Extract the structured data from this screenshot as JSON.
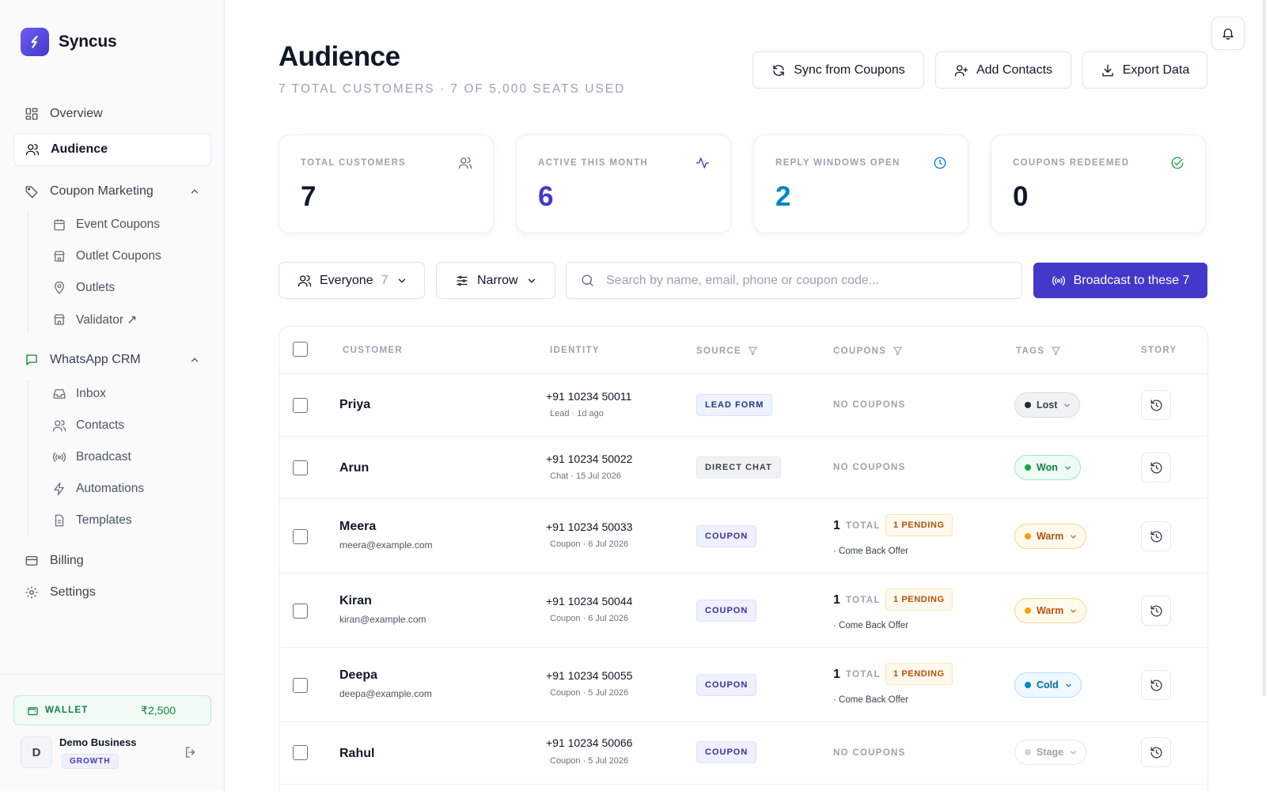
{
  "app": {
    "name": "Syncus"
  },
  "sidebar": {
    "nav": [
      {
        "label": "Overview"
      },
      {
        "label": "Audience"
      },
      {
        "label": "Coupon Marketing"
      },
      {
        "label": "Event Coupons"
      },
      {
        "label": "Outlet Coupons"
      },
      {
        "label": "Outlets"
      },
      {
        "label": "Validator ↗"
      },
      {
        "label": "WhatsApp CRM"
      },
      {
        "label": "Inbox"
      },
      {
        "label": "Contacts"
      },
      {
        "label": "Broadcast"
      },
      {
        "label": "Automations"
      },
      {
        "label": "Templates"
      },
      {
        "label": "Billing"
      },
      {
        "label": "Settings"
      }
    ],
    "active": "Audience",
    "wallet": {
      "label": "WALLET",
      "amount": "₹2,500"
    },
    "account": {
      "initial": "D",
      "name": "Demo Business",
      "plan": "GROWTH"
    }
  },
  "header": {
    "title": "Audience",
    "subtitle": "7 TOTAL CUSTOMERS · 7 OF 5,000 SEATS USED",
    "buttons": {
      "sync": "Sync from Coupons",
      "add": "Add Contacts",
      "export": "Export Data"
    }
  },
  "stats": [
    {
      "label": "TOTAL CUSTOMERS",
      "value": "7",
      "color": "#111827",
      "icon": "users-icon"
    },
    {
      "label": "ACTIVE THIS MONTH",
      "value": "6",
      "color": "#4338ca",
      "icon": "activity-icon"
    },
    {
      "label": "REPLY WINDOWS OPEN",
      "value": "2",
      "color": "#0284c7",
      "icon": "clock-icon"
    },
    {
      "label": "COUPONS REDEEMED",
      "value": "0",
      "color": "#111827",
      "icon": "check-circle-icon"
    }
  ],
  "filters": {
    "segment": {
      "label": "Everyone",
      "count": "7"
    },
    "narrow": {
      "label": "Narrow"
    },
    "search_placeholder": "Search by name, email, phone or coupon code...",
    "broadcast": "Broadcast to these 7"
  },
  "table": {
    "columns": {
      "customer": "CUSTOMER",
      "identity": "IDENTITY",
      "source": "SOURCE",
      "coupons": "COUPONS",
      "tags": "TAGS",
      "story": "STORY"
    },
    "rows": [
      {
        "name": "Priya",
        "email": "",
        "phone": "+91 10234 50011",
        "meta": "Lead · 1d ago",
        "source": "LEAD FORM",
        "coupons": "NO COUPONS",
        "tag": "Lost"
      },
      {
        "name": "Arun",
        "email": "",
        "phone": "+91 10234 50022",
        "meta": "Chat · 15 Jul 2026",
        "source": "DIRECT CHAT",
        "coupons": "NO COUPONS",
        "tag": "Won"
      },
      {
        "name": "Meera",
        "email": "meera@example.com",
        "phone": "+91 10234 50033",
        "meta": "Coupon · 6 Jul 2026",
        "source": "COUPON",
        "coupon_count": "1",
        "coupon_total": "TOTAL",
        "coupon_pending": "1 PENDING",
        "coupon_offer": "· Come Back Offer",
        "tag": "Warm"
      },
      {
        "name": "Kiran",
        "email": "kiran@example.com",
        "phone": "+91 10234 50044",
        "meta": "Coupon · 6 Jul 2026",
        "source": "COUPON",
        "coupon_count": "1",
        "coupon_total": "TOTAL",
        "coupon_pending": "1 PENDING",
        "coupon_offer": "· Come Back Offer",
        "tag": "Warm"
      },
      {
        "name": "Deepa",
        "email": "deepa@example.com",
        "phone": "+91 10234 50055",
        "meta": "Coupon · 5 Jul 2026",
        "source": "COUPON",
        "coupon_count": "1",
        "coupon_total": "TOTAL",
        "coupon_pending": "1 PENDING",
        "coupon_offer": "· Come Back Offer",
        "tag": "Cold"
      },
      {
        "name": "Rahul",
        "email": "",
        "phone": "+91 10234 50066",
        "meta": "Coupon · 5 Jul 2026",
        "source": "COUPON",
        "coupons": "NO COUPONS",
        "tag": "Stage"
      }
    ]
  },
  "colors": {
    "brand": "#4338ca",
    "won": "#15803d",
    "warm": "#f59e0b",
    "cold": "#0284c7",
    "lost": "#1f2937"
  }
}
